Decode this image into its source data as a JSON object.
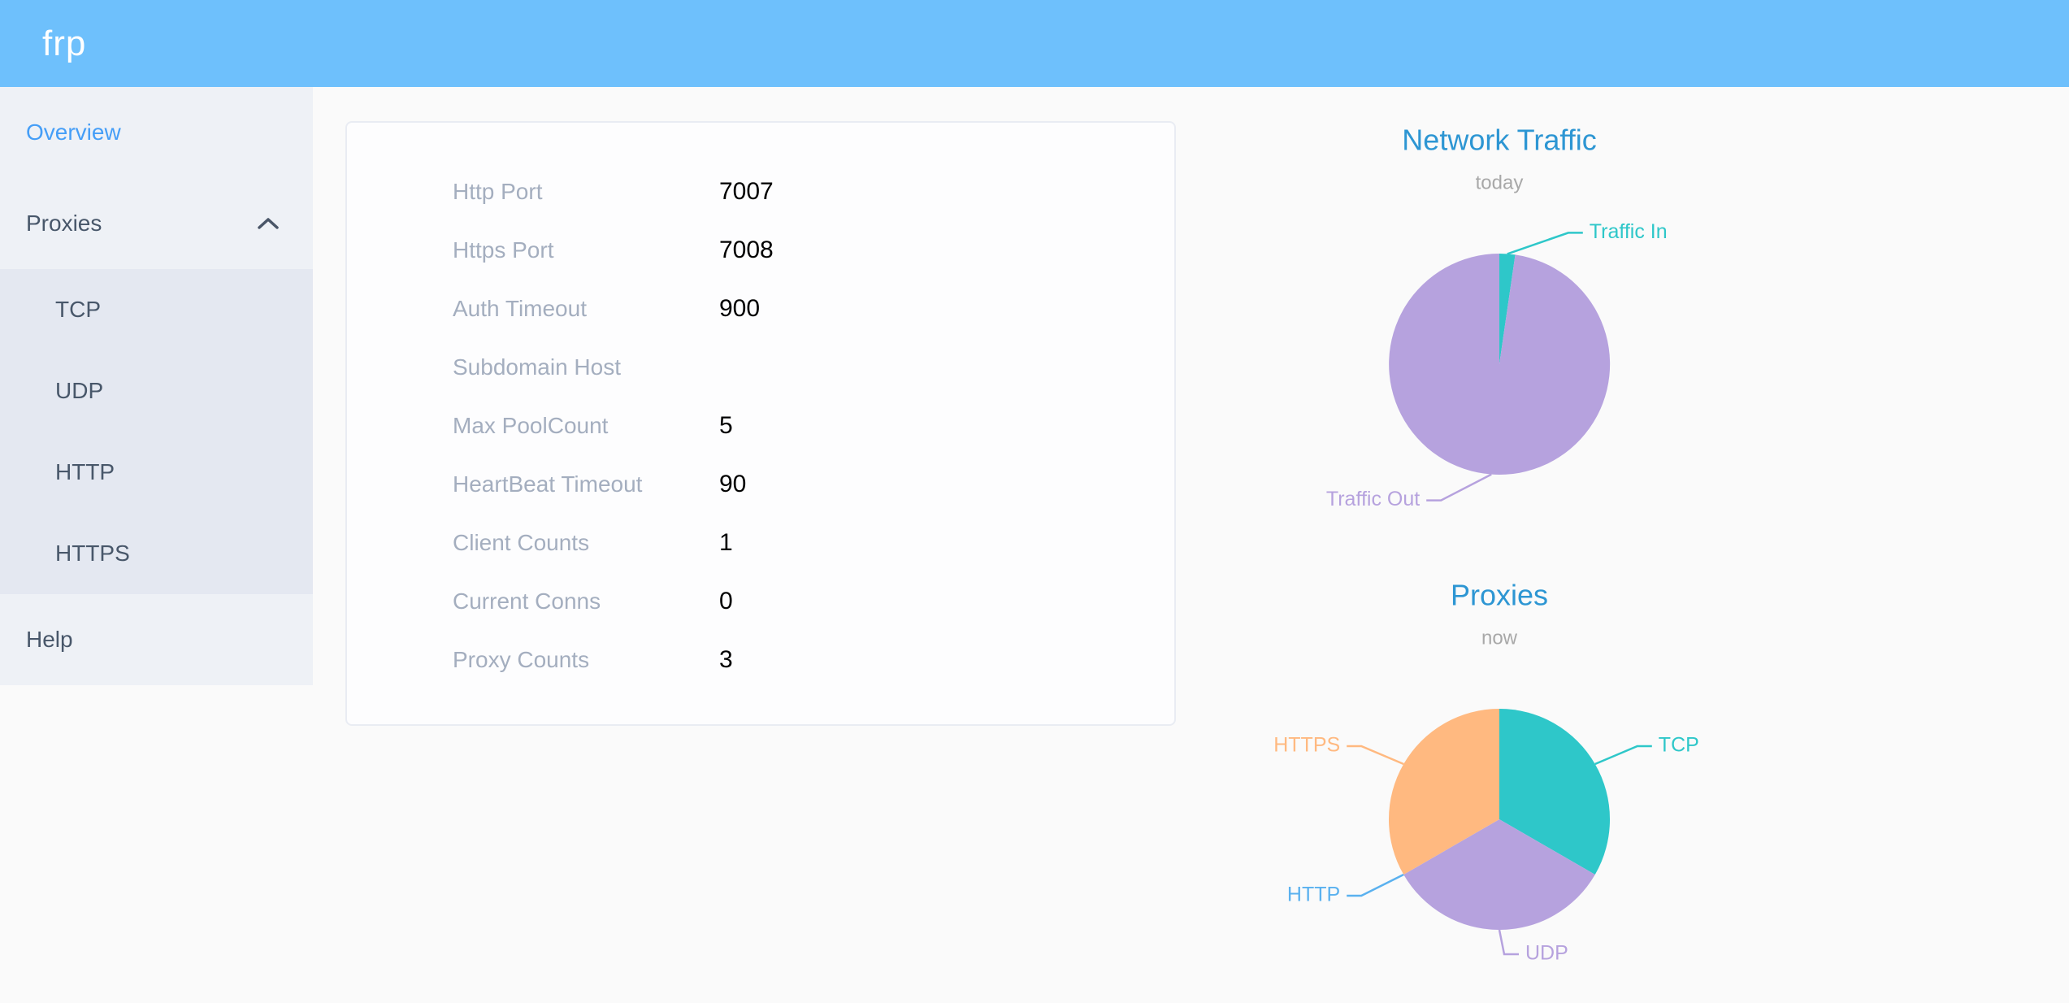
{
  "header": {
    "logo": "frp"
  },
  "sidebar": {
    "items": [
      {
        "label": "Overview",
        "active": true
      },
      {
        "label": "Proxies",
        "expanded": true,
        "children": [
          "TCP",
          "UDP",
          "HTTP",
          "HTTPS"
        ]
      },
      {
        "label": "Help"
      }
    ]
  },
  "server_info": {
    "rows": [
      {
        "label": "Http Port",
        "value": "7007"
      },
      {
        "label": "Https Port",
        "value": "7008"
      },
      {
        "label": "Auth Timeout",
        "value": "900"
      },
      {
        "label": "Subdomain Host",
        "value": ""
      },
      {
        "label": "Max PoolCount",
        "value": "5"
      },
      {
        "label": "HeartBeat Timeout",
        "value": "90"
      },
      {
        "label": "Client Counts",
        "value": "1"
      },
      {
        "label": "Current Conns",
        "value": "0"
      },
      {
        "label": "Proxy Counts",
        "value": "3"
      }
    ]
  },
  "chart_data": [
    {
      "type": "pie",
      "title": "Network Traffic",
      "subtitle": "today",
      "legend_position": "none",
      "labels": "outside",
      "slices": [
        {
          "name": "Traffic In",
          "percent": 2.3,
          "color": "#2ec7c9"
        },
        {
          "name": "Traffic Out",
          "percent": 97.7,
          "color": "#b6a2de"
        }
      ]
    },
    {
      "type": "pie",
      "title": "Proxies",
      "subtitle": "now",
      "legend_position": "none",
      "labels": "outside",
      "slices": [
        {
          "name": "TCP",
          "value": 1,
          "color": "#2ec7c9"
        },
        {
          "name": "UDP",
          "value": 1,
          "color": "#b6a2de"
        },
        {
          "name": "HTTP",
          "value": 0,
          "color": "#5ab1ef"
        },
        {
          "name": "HTTPS",
          "value": 1,
          "color": "#ffb980"
        }
      ]
    }
  ],
  "colors": {
    "header_bg": "#6ec0fc",
    "logo_text": "#ffffff",
    "page_bg": "#fafafa",
    "sidebar_menu_bg": "#eef1f6",
    "submenu_bg": "#e4e8f1",
    "menu_text": "#48576a",
    "menu_active": "#459ef7",
    "card_bg": "#fdfdfe",
    "card_border": "#e9ecf3",
    "label_text": "#a4aebf",
    "value_text": "#000000",
    "chart_title": "#2d96d3",
    "chart_subtitle": "#a8a8a8"
  }
}
